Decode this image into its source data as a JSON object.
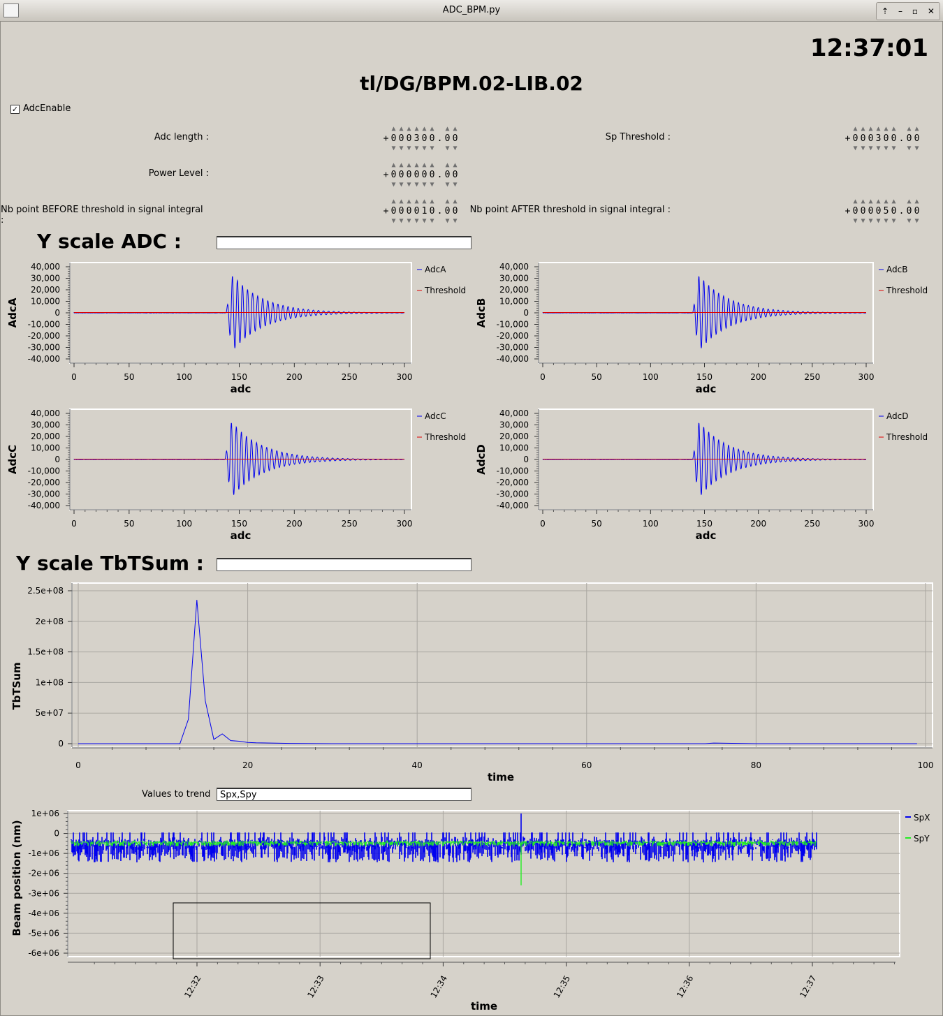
{
  "window": {
    "title": "ADC_BPM.py"
  },
  "clock": "12:37:01",
  "device": "tl/DG/BPM.02-LIB.02",
  "adc_enable": {
    "label": "AdcEnable",
    "checked": true
  },
  "params": {
    "adc_length": {
      "label": "Adc length :",
      "sign": "+",
      "digits": [
        "0",
        "0",
        "0",
        "3",
        "0",
        "0",
        ".",
        "0",
        "0"
      ]
    },
    "power_level": {
      "label": "Power Level :",
      "sign": "+",
      "digits": [
        "0",
        "0",
        "0",
        "0",
        "0",
        "0",
        ".",
        "0",
        "0"
      ]
    },
    "nb_before": {
      "label": "Nb point BEFORE threshold in signal integral :",
      "sign": "+",
      "digits": [
        "0",
        "0",
        "0",
        "0",
        "1",
        "0",
        ".",
        "0",
        "0"
      ]
    },
    "sp_threshold": {
      "label": "Sp Threshold :",
      "sign": "+",
      "digits": [
        "0",
        "0",
        "0",
        "3",
        "0",
        "0",
        ".",
        "0",
        "0"
      ]
    },
    "nb_after": {
      "label": "Nb point AFTER threshold in signal integral :",
      "sign": "+",
      "digits": [
        "0",
        "0",
        "0",
        "0",
        "5",
        "0",
        ".",
        "0",
        "0"
      ]
    }
  },
  "yscale_adc": {
    "label": "Y scale ADC :",
    "value": ""
  },
  "yscale_tbt": {
    "label": "Y scale TbTSum :",
    "value": ""
  },
  "trend": {
    "label": "Values to trend",
    "value": "Spx,Spy"
  },
  "colors": {
    "blue": "#0000ee",
    "red": "#dd0000",
    "green": "#22ee22",
    "panel": "#d6d2ca"
  },
  "chart_data": [
    {
      "type": "line",
      "ylabel": "AdcA",
      "xlabel": "adc",
      "xlim": [
        0,
        300
      ],
      "ylim": [
        -40000,
        40000
      ],
      "xticks": [
        "0",
        "50",
        "100",
        "150",
        "200",
        "250",
        "300"
      ],
      "yticks": [
        "40,000",
        "30,000",
        "20,000",
        "10,000",
        "0",
        "-10,000",
        "-20,000",
        "-30,000",
        "-40,000"
      ],
      "series": [
        {
          "name": "AdcA",
          "color": "#0000ee",
          "burst": {
            "start": 138,
            "amp": 33000,
            "period": 4.6,
            "decay": 28,
            "end": 300
          }
        },
        {
          "name": "Threshold",
          "color": "#dd0000",
          "constant": 300
        }
      ]
    },
    {
      "type": "line",
      "ylabel": "AdcB",
      "xlabel": "adc",
      "xlim": [
        0,
        300
      ],
      "ylim": [
        -40000,
        40000
      ],
      "xticks": [
        "0",
        "50",
        "100",
        "150",
        "200",
        "250",
        "300"
      ],
      "yticks": [
        "40,000",
        "30,000",
        "20,000",
        "10,000",
        "0",
        "-10,000",
        "-20,000",
        "-30,000",
        "-40,000"
      ],
      "series": [
        {
          "name": "AdcB",
          "color": "#0000ee",
          "burst": {
            "start": 139,
            "amp": 33000,
            "period": 4.6,
            "decay": 28,
            "end": 300
          }
        },
        {
          "name": "Threshold",
          "color": "#dd0000",
          "constant": 300
        }
      ]
    },
    {
      "type": "line",
      "ylabel": "AdcC",
      "xlabel": "adc",
      "xlim": [
        0,
        300
      ],
      "ylim": [
        -40000,
        40000
      ],
      "xticks": [
        "0",
        "50",
        "100",
        "150",
        "200",
        "250",
        "300"
      ],
      "yticks": [
        "40,000",
        "30,000",
        "20,000",
        "10,000",
        "0",
        "-10,000",
        "-20,000",
        "-30,000",
        "-40,000"
      ],
      "series": [
        {
          "name": "AdcC",
          "color": "#0000ee",
          "burst": {
            "start": 137,
            "amp": 33000,
            "period": 4.6,
            "decay": 28,
            "end": 300
          }
        },
        {
          "name": "Threshold",
          "color": "#dd0000",
          "constant": 300
        }
      ]
    },
    {
      "type": "line",
      "ylabel": "AdcD",
      "xlabel": "adc",
      "xlim": [
        0,
        300
      ],
      "ylim": [
        -40000,
        40000
      ],
      "xticks": [
        "0",
        "50",
        "100",
        "150",
        "200",
        "250",
        "300"
      ],
      "yticks": [
        "40,000",
        "30,000",
        "20,000",
        "10,000",
        "0",
        "-10,000",
        "-20,000",
        "-30,000",
        "-40,000"
      ],
      "series": [
        {
          "name": "AdcD",
          "color": "#0000ee",
          "burst": {
            "start": 139,
            "amp": 33000,
            "period": 4.6,
            "decay": 28,
            "end": 300
          }
        },
        {
          "name": "Threshold",
          "color": "#dd0000",
          "constant": 300
        }
      ]
    },
    {
      "type": "line",
      "ylabel": "TbTSum",
      "xlabel": "time",
      "xlim": [
        0,
        100
      ],
      "ylim": [
        0,
        250000000
      ],
      "xticks": [
        "0",
        "20",
        "40",
        "60",
        "80",
        "100"
      ],
      "yticks": [
        "2.5e+08",
        "2e+08",
        "1.5e+08",
        "1e+08",
        "5e+07",
        "0"
      ],
      "grid": true,
      "series": [
        {
          "name": "TbTSum",
          "color": "#0000ee",
          "x": [
            0,
            10,
            12,
            13,
            14,
            15,
            16,
            17,
            18,
            19,
            20,
            21,
            25,
            30,
            40,
            60,
            74,
            75,
            80,
            99
          ],
          "y": [
            0,
            0,
            0,
            40000000,
            235000000,
            70000000,
            7000000,
            16000000,
            5000000,
            4000000,
            2000000,
            1500000,
            500000,
            0,
            0,
            0,
            0,
            1000000,
            0,
            0
          ]
        }
      ]
    },
    {
      "type": "line",
      "ylabel": "Beam position (nm)",
      "xlabel": "time",
      "ylim": [
        -6000000,
        1000000
      ],
      "yticks": [
        "1e+06",
        "0",
        "-1e+06",
        "-2e+06",
        "-3e+06",
        "-4e+06",
        "-5e+06",
        "-6e+06"
      ],
      "xticks": [
        "12:32",
        "12:33",
        "12:34",
        "12:35",
        "12:36",
        "12:37"
      ],
      "grid": true,
      "series": [
        {
          "name": "SpX",
          "color": "#0000ee",
          "center": -800000,
          "noise": 650000,
          "spike": {
            "time": "12:34:40",
            "value": 1000000
          }
        },
        {
          "name": "SpY",
          "color": "#22ee22",
          "center": -500000,
          "noise": 150000,
          "spike": {
            "time": "12:34:40",
            "value": -2600000
          }
        }
      ]
    }
  ]
}
